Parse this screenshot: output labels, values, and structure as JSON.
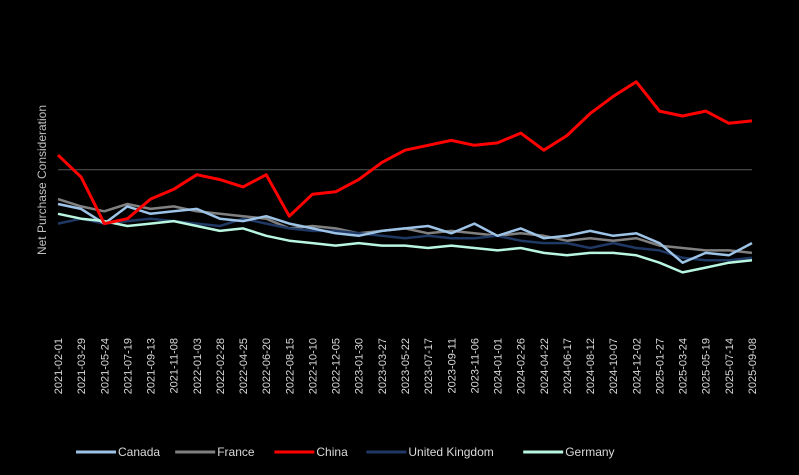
{
  "chart_data": {
    "type": "line",
    "ylabel": "Net Purchase Consideration",
    "xlabel": "",
    "ylim": [
      -50,
      40
    ],
    "zero_line": 0,
    "y_axis_labels": false,
    "grid": false,
    "legend_position": "bottom",
    "background": "#000000",
    "x_tick_labels": [
      "2021-02-01",
      "2021-03-29",
      "2021-05-24",
      "2021-07-19",
      "2021-09-13",
      "2021-11-08",
      "2022-01-03",
      "2022-02-28",
      "2022-04-25",
      "2022-06-20",
      "2022-08-15",
      "2022-10-10",
      "2022-12-05",
      "2023-01-30",
      "2023-03-27",
      "2023-05-22",
      "2023-07-17",
      "2023-09-11",
      "2023-11-06",
      "2024-01-01",
      "2024-02-26",
      "2024-04-22",
      "2024-06-17",
      "2024-08-12",
      "2024-10-07",
      "2024-12-02",
      "2025-01-27",
      "2025-03-24",
      "2025-05-19",
      "2025-07-14",
      "2025-09-08"
    ],
    "x": [
      "2021-02-01",
      "2021-03-29",
      "2021-05-24",
      "2021-07-19",
      "2021-09-13",
      "2021-11-08",
      "2022-01-03",
      "2022-02-28",
      "2022-04-25",
      "2022-06-20",
      "2022-08-15",
      "2022-10-10",
      "2022-12-05",
      "2023-01-30",
      "2023-03-27",
      "2023-05-22",
      "2023-07-17",
      "2023-09-11",
      "2023-11-06",
      "2024-01-01",
      "2024-02-26",
      "2024-04-22",
      "2024-06-17",
      "2024-08-12",
      "2024-10-07",
      "2024-12-02",
      "2025-01-27",
      "2025-03-24",
      "2025-05-19",
      "2025-07-14",
      "2025-09-08"
    ],
    "series": [
      {
        "name": "Canada",
        "color": "#9dc3e6",
        "values": [
          -14,
          -16,
          -22,
          -15,
          -18,
          -17,
          -16,
          -20,
          -21,
          -19,
          -22,
          -24,
          -26,
          -27,
          -25,
          -24,
          -23,
          -26,
          -22,
          -27,
          -24,
          -28,
          -27,
          -25,
          -27,
          -26,
          -30,
          -38,
          -34,
          -35,
          -30
        ]
      },
      {
        "name": "France",
        "color": "#808080",
        "values": [
          -12,
          -15,
          -17,
          -14,
          -16,
          -15,
          -17,
          -18,
          -19,
          -20,
          -24,
          -23,
          -24,
          -26,
          -25,
          -24,
          -26,
          -25,
          -26,
          -27,
          -26,
          -27,
          -29,
          -28,
          -29,
          -28,
          -31,
          -32,
          -33,
          -33,
          -34
        ]
      },
      {
        "name": "China",
        "color": "#ff0000",
        "values": [
          6,
          -3,
          -22,
          -20,
          -12,
          -8,
          -2,
          -4,
          -7,
          -2,
          -19,
          -10,
          -9,
          -4,
          3,
          8,
          10,
          12,
          10,
          11,
          15,
          8,
          14,
          23,
          30,
          36,
          24,
          22,
          24,
          19,
          20
        ]
      },
      {
        "name": "United Kingdom",
        "color": "#1f3864",
        "values": [
          -22,
          -20,
          -22,
          -21,
          -20,
          -21,
          -22,
          -23,
          -20,
          -22,
          -24,
          -25,
          -25,
          -26,
          -27,
          -28,
          -27,
          -28,
          -28,
          -27,
          -29,
          -30,
          -30,
          -32,
          -30,
          -32,
          -33,
          -36,
          -37,
          -37,
          -36
        ]
      },
      {
        "name": "Germany",
        "color": "#b9f6e0",
        "values": [
          -18,
          -20,
          -21,
          -23,
          -22,
          -21,
          -23,
          -25,
          -24,
          -27,
          -29,
          -30,
          -31,
          -30,
          -31,
          -31,
          -32,
          -31,
          -32,
          -33,
          -32,
          -34,
          -35,
          -34,
          -34,
          -35,
          -38,
          -42,
          -40,
          -38,
          -37
        ]
      }
    ]
  }
}
